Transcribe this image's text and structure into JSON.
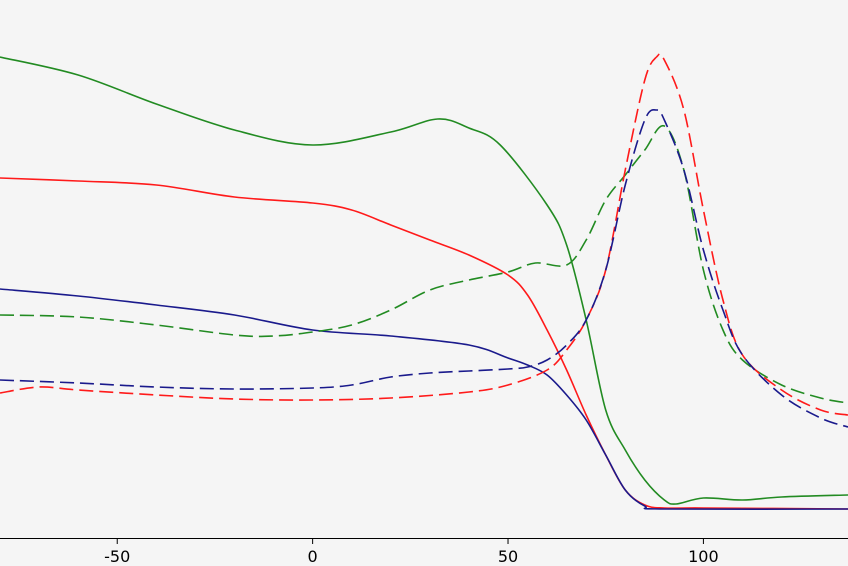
{
  "chart_data": {
    "type": "line",
    "xlim": [
      -80,
      137
    ],
    "ylim": [
      0,
      538
    ],
    "xticks": [
      -50,
      0,
      50,
      100
    ],
    "series": [
      {
        "color": "#228b22",
        "dashed": false,
        "x": [
          -80,
          -60,
          -40,
          -20,
          0,
          20,
          32,
          40,
          48,
          60,
          65,
          70,
          75,
          80,
          85,
          90,
          93,
          100,
          110,
          120,
          137
        ],
        "values": [
          481,
          463,
          434,
          408,
          393,
          406,
          419,
          410,
          393,
          333,
          293,
          218,
          128,
          88,
          58,
          38,
          34,
          40,
          38,
          41,
          43
        ]
      },
      {
        "color": "#ff1a1a",
        "dashed": false,
        "x": [
          -80,
          -60,
          -40,
          -20,
          0,
          10,
          20,
          30,
          40,
          50,
          55,
          60,
          65,
          70,
          75,
          80,
          85,
          90,
          100,
          137
        ],
        "values": [
          360,
          357,
          353,
          341,
          335,
          328,
          313,
          298,
          283,
          263,
          243,
          208,
          168,
          123,
          83,
          48,
          33,
          30,
          30,
          29
        ]
      },
      {
        "color": "#1a1a8c",
        "dashed": false,
        "x": [
          -80,
          -60,
          -40,
          -20,
          0,
          20,
          40,
          50,
          55,
          60,
          65,
          70,
          75,
          80,
          85,
          90,
          137
        ],
        "values": [
          249,
          242,
          233,
          223,
          208,
          202,
          193,
          180,
          173,
          163,
          143,
          118,
          83,
          48,
          32,
          29,
          29
        ]
      },
      {
        "color": "#228b22",
        "dashed": true,
        "x": [
          -80,
          -60,
          -40,
          -20,
          -10,
          0,
          10,
          20,
          30,
          40,
          50,
          57,
          65,
          70,
          75,
          80,
          85,
          90,
          95,
          100,
          105,
          110,
          120,
          130,
          137
        ],
        "values": [
          223,
          221,
          213,
          203,
          202,
          206,
          213,
          228,
          248,
          258,
          266,
          275,
          273,
          298,
          338,
          363,
          388,
          412,
          368,
          268,
          208,
          178,
          153,
          140,
          135
        ]
      },
      {
        "color": "#ff1a1a",
        "dashed": true,
        "x": [
          -80,
          -70,
          -60,
          -40,
          -20,
          0,
          20,
          40,
          50,
          60,
          65,
          70,
          75,
          80,
          85,
          88,
          90,
          95,
          100,
          105,
          110,
          120,
          130,
          137
        ],
        "values": [
          145,
          151,
          148,
          143,
          139,
          138,
          140,
          146,
          153,
          168,
          188,
          218,
          268,
          368,
          458,
          481,
          478,
          428,
          328,
          238,
          183,
          148,
          128,
          123
        ]
      },
      {
        "color": "#1a1a8c",
        "dashed": true,
        "x": [
          -80,
          -60,
          -40,
          -20,
          0,
          10,
          20,
          30,
          40,
          50,
          55,
          60,
          65,
          70,
          75,
          80,
          85,
          88,
          90,
          95,
          100,
          105,
          110,
          120,
          130,
          137
        ],
        "values": [
          158,
          155,
          151,
          149,
          150,
          153,
          161,
          165,
          167,
          169,
          171,
          178,
          193,
          218,
          268,
          353,
          418,
          428,
          418,
          368,
          288,
          228,
          183,
          143,
          120,
          111
        ]
      }
    ]
  }
}
